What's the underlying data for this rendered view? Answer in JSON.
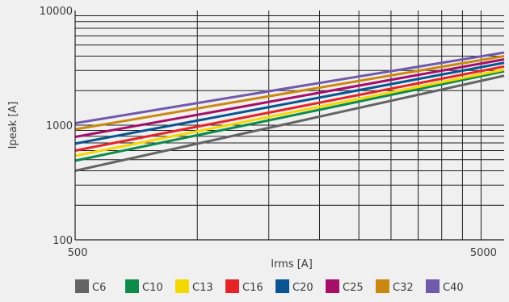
{
  "chart_data": {
    "type": "line",
    "title": "",
    "xlabel": "Irms [A]",
    "ylabel": "Ipeak [A]",
    "x_scale": "log",
    "y_scale": "log",
    "xlim": [
      500,
      5700
    ],
    "ylim": [
      100,
      10000
    ],
    "x_tick_labels": [
      {
        "value": 500,
        "label": "500"
      },
      {
        "value": 5000,
        "label": "5000"
      }
    ],
    "y_tick_labels": [
      {
        "value": 100,
        "label": "100"
      },
      {
        "value": 1000,
        "label": "1000"
      },
      {
        "value": 10000,
        "label": "10000"
      }
    ],
    "x_gridlines": [
      1000,
      1500,
      2000,
      2500,
      3000,
      3500,
      4000,
      4500,
      5000
    ],
    "y_gridlines": [
      200,
      300,
      400,
      500,
      600,
      700,
      800,
      900,
      1000,
      2000,
      3000,
      4000,
      5000,
      6000,
      7000,
      8000,
      9000
    ],
    "grid": true,
    "legend_position": "bottom",
    "series": [
      {
        "name": "C6",
        "color": "#646464",
        "points": [
          [
            500,
            400
          ],
          [
            5700,
            2700
          ]
        ]
      },
      {
        "name": "C10",
        "color": "#0e8a4a",
        "points": [
          [
            500,
            490
          ],
          [
            5700,
            2950
          ]
        ]
      },
      {
        "name": "C13",
        "color": "#f5d800",
        "points": [
          [
            500,
            540
          ],
          [
            5700,
            3050
          ]
        ]
      },
      {
        "name": "C16",
        "color": "#e42528",
        "points": [
          [
            500,
            600
          ],
          [
            5700,
            3250
          ]
        ]
      },
      {
        "name": "C20",
        "color": "#0a5591",
        "points": [
          [
            500,
            690
          ],
          [
            5700,
            3500
          ]
        ]
      },
      {
        "name": "C25",
        "color": "#a50f68",
        "points": [
          [
            500,
            790
          ],
          [
            5700,
            3750
          ]
        ]
      },
      {
        "name": "C32",
        "color": "#c98812",
        "points": [
          [
            500,
            920
          ],
          [
            5700,
            4000
          ]
        ]
      },
      {
        "name": "C40",
        "color": "#7159ab",
        "points": [
          [
            500,
            1040
          ],
          [
            5700,
            4300
          ]
        ]
      }
    ]
  }
}
